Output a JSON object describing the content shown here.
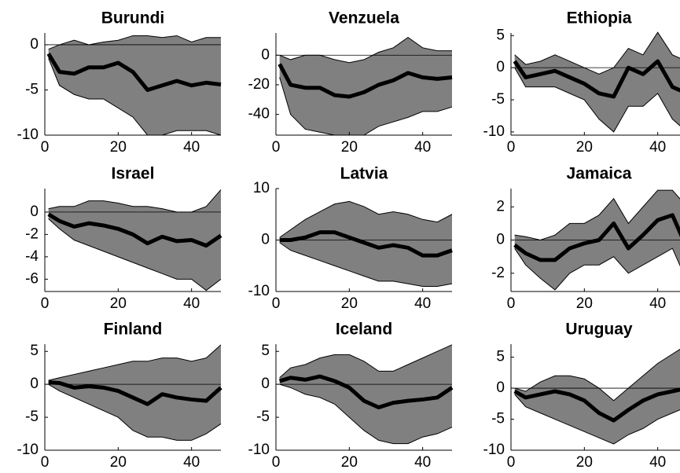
{
  "chart_data": [
    {
      "type": "band-line",
      "title": "Burundi",
      "x": [
        1,
        4,
        8,
        12,
        16,
        20,
        24,
        28,
        32,
        36,
        40,
        44,
        48
      ],
      "xlim": [
        0,
        48
      ],
      "xticks": [
        0,
        20,
        40
      ],
      "ylim": [
        -10,
        1.3
      ],
      "yticks": [
        -10,
        -5,
        0
      ],
      "band": {
        "color": "#808080",
        "lower": [
          -1.5,
          -4.5,
          -5.5,
          -6,
          -6,
          -7,
          -8,
          -10,
          -10,
          -9.5,
          -9.5,
          -9.5,
          -10
        ],
        "upper": [
          -0.5,
          0,
          0.5,
          0,
          0.3,
          0.5,
          1,
          1,
          0.8,
          1,
          0.3,
          0.8,
          0.8
        ]
      },
      "series": [
        {
          "color": "#000000",
          "values": [
            -1,
            -3,
            -3.2,
            -2.5,
            -2.5,
            -2,
            -3,
            -5,
            -4.5,
            -4,
            -4.5,
            -4.2,
            -4.4
          ]
        }
      ]
    },
    {
      "type": "band-line",
      "title": "Venzuela",
      "x": [
        1,
        4,
        8,
        12,
        16,
        20,
        24,
        28,
        32,
        36,
        40,
        44,
        48
      ],
      "xlim": [
        0,
        48
      ],
      "xticks": [
        0,
        20,
        40
      ],
      "ylim": [
        -54,
        15
      ],
      "yticks": [
        -40,
        -20,
        0
      ],
      "band": {
        "color": "#808080",
        "lower": [
          -15,
          -40,
          -50,
          -52,
          -54,
          -54,
          -54,
          -48,
          -45,
          -42,
          -38,
          -38,
          -35
        ],
        "upper": [
          0,
          -3,
          0,
          0,
          -3,
          -5,
          -3,
          2,
          5,
          12,
          5,
          3,
          3
        ]
      },
      "series": [
        {
          "color": "#000000",
          "values": [
            -6,
            -20,
            -22,
            -22,
            -27,
            -28,
            -25,
            -20,
            -17,
            -12,
            -15,
            -16,
            -15
          ]
        }
      ]
    },
    {
      "type": "band-line",
      "title": "Ethiopia",
      "x": [
        1,
        4,
        8,
        12,
        16,
        20,
        24,
        28,
        32,
        36,
        40,
        44,
        48
      ],
      "xlim": [
        0,
        48
      ],
      "xticks": [
        0,
        20,
        40
      ],
      "ylim": [
        -10.5,
        5.4
      ],
      "yticks": [
        -10,
        -5,
        0,
        5
      ],
      "band": {
        "color": "#808080",
        "lower": [
          0,
          -3,
          -3,
          -3,
          -4,
          -5,
          -8,
          -10,
          -6,
          -6,
          -4,
          -8,
          -10
        ],
        "upper": [
          2,
          0.5,
          1,
          2,
          1,
          0,
          -1,
          0,
          3,
          2,
          5.5,
          2,
          1
        ]
      },
      "series": [
        {
          "color": "#000000",
          "values": [
            1,
            -1.5,
            -1,
            -0.5,
            -1.5,
            -2.5,
            -4,
            -4.5,
            0,
            -1,
            1,
            -3,
            -4
          ]
        }
      ]
    },
    {
      "type": "band-line",
      "title": "Israel",
      "x": [
        1,
        4,
        8,
        12,
        16,
        20,
        24,
        28,
        32,
        36,
        40,
        44,
        48
      ],
      "xlim": [
        0,
        48
      ],
      "xticks": [
        0,
        20,
        40
      ],
      "ylim": [
        -7.1,
        2.1
      ],
      "yticks": [
        -6,
        -4,
        -2,
        0
      ],
      "band": {
        "color": "#808080",
        "lower": [
          -0.6,
          -1.5,
          -2.5,
          -3,
          -3.5,
          -4,
          -4.5,
          -5,
          -5.5,
          -6,
          -6,
          -7,
          -6
        ],
        "upper": [
          0.3,
          0.5,
          0.5,
          1,
          1,
          0.8,
          0.5,
          0.5,
          0.3,
          0,
          0,
          0.5,
          2
        ]
      },
      "series": [
        {
          "color": "#000000",
          "values": [
            -0.2,
            -0.8,
            -1.3,
            -1,
            -1.2,
            -1.5,
            -2,
            -2.8,
            -2.2,
            -2.6,
            -2.5,
            -3,
            -2.1
          ]
        }
      ]
    },
    {
      "type": "band-line",
      "title": "Latvia",
      "x": [
        1,
        4,
        8,
        12,
        16,
        20,
        24,
        28,
        32,
        36,
        40,
        44,
        48
      ],
      "xlim": [
        0,
        48
      ],
      "xticks": [
        0,
        20,
        40
      ],
      "ylim": [
        -10,
        10
      ],
      "yticks": [
        -10,
        0,
        10
      ],
      "band": {
        "color": "#808080",
        "lower": [
          -0.5,
          -2,
          -3,
          -4,
          -5,
          -6,
          -7,
          -8,
          -8,
          -8.5,
          -9,
          -9,
          -8.5
        ],
        "upper": [
          0.5,
          2,
          4,
          5.5,
          7,
          7.5,
          6.5,
          5,
          5.5,
          5,
          4,
          3.5,
          5
        ]
      },
      "series": [
        {
          "color": "#000000",
          "values": [
            0,
            0,
            0.5,
            1.5,
            1.5,
            0.5,
            -0.5,
            -1.5,
            -1,
            -1.5,
            -3,
            -3,
            -2
          ]
        }
      ]
    },
    {
      "type": "band-line",
      "title": "Jamaica",
      "x": [
        1,
        4,
        8,
        12,
        16,
        20,
        24,
        28,
        32,
        36,
        40,
        44,
        48
      ],
      "xlim": [
        0,
        48
      ],
      "xticks": [
        0,
        20,
        40
      ],
      "ylim": [
        -3.1,
        3.1
      ],
      "yticks": [
        -2,
        0,
        2
      ],
      "band": {
        "color": "#808080",
        "lower": [
          -0.5,
          -1.5,
          -2.3,
          -3,
          -2,
          -1.5,
          -1.5,
          -1,
          -2,
          -1.5,
          -1,
          -0.5,
          -2.5
        ],
        "upper": [
          0.3,
          0.2,
          0,
          0.3,
          1,
          1,
          1.5,
          2.5,
          1,
          2,
          3,
          3,
          2
        ]
      },
      "series": [
        {
          "color": "#000000",
          "values": [
            -0.3,
            -0.8,
            -1.2,
            -1.2,
            -0.5,
            -0.2,
            0,
            1,
            -0.5,
            0.3,
            1.2,
            1.5,
            -0.5
          ]
        }
      ]
    },
    {
      "type": "band-line",
      "title": "Finland",
      "x": [
        1,
        4,
        8,
        12,
        16,
        20,
        24,
        28,
        32,
        36,
        40,
        44,
        48
      ],
      "xlim": [
        0,
        48
      ],
      "xticks": [
        0,
        20,
        40
      ],
      "ylim": [
        -10,
        6.1
      ],
      "yticks": [
        -10,
        -5,
        0,
        5
      ],
      "band": {
        "color": "#808080",
        "lower": [
          0,
          -1,
          -2,
          -3,
          -4,
          -5,
          -7,
          -8,
          -8,
          -8.5,
          -8.5,
          -7.5,
          -6
        ],
        "upper": [
          0.6,
          1,
          1.5,
          2,
          2.5,
          3,
          3.5,
          3.5,
          4,
          4,
          3.5,
          4,
          6
        ]
      },
      "series": [
        {
          "color": "#000000",
          "values": [
            0.3,
            0.2,
            -0.5,
            -0.3,
            -0.5,
            -1,
            -2,
            -3,
            -1.5,
            -2,
            -2.3,
            -2.5,
            -0.5
          ]
        }
      ]
    },
    {
      "type": "band-line",
      "title": "Iceland",
      "x": [
        1,
        4,
        8,
        12,
        16,
        20,
        24,
        28,
        32,
        36,
        40,
        44,
        48
      ],
      "xlim": [
        0,
        48
      ],
      "xticks": [
        0,
        20,
        40
      ],
      "ylim": [
        -10,
        6.1
      ],
      "yticks": [
        -10,
        -5,
        0,
        5
      ],
      "band": {
        "color": "#808080",
        "lower": [
          0,
          -0.5,
          -1.5,
          -2,
          -3,
          -5,
          -7,
          -8.5,
          -9,
          -9,
          -8,
          -7.5,
          -6.5
        ],
        "upper": [
          1,
          2.5,
          3,
          4,
          4.5,
          4.5,
          3.5,
          2,
          2,
          3,
          4,
          5,
          6
        ]
      },
      "series": [
        {
          "color": "#000000",
          "values": [
            0.5,
            1,
            0.7,
            1.2,
            0.5,
            -0.5,
            -2.5,
            -3.5,
            -2.8,
            -2.5,
            -2.3,
            -2,
            -0.5
          ]
        }
      ]
    },
    {
      "type": "band-line",
      "title": "Uruguay",
      "x": [
        1,
        4,
        8,
        12,
        16,
        20,
        24,
        28,
        32,
        36,
        40,
        44,
        48
      ],
      "xlim": [
        0,
        48
      ],
      "xticks": [
        0,
        20,
        40
      ],
      "ylim": [
        -10,
        7.1
      ],
      "yticks": [
        -10,
        -5,
        0,
        5
      ],
      "band": {
        "color": "#808080",
        "lower": [
          -1,
          -3,
          -4,
          -5,
          -6,
          -7,
          -8,
          -9,
          -7.5,
          -6.5,
          -5,
          -4,
          -3
        ],
        "upper": [
          0,
          -0.5,
          1,
          2,
          2,
          1.5,
          0,
          -2,
          0,
          2,
          4,
          5.5,
          7
        ]
      },
      "series": [
        {
          "color": "#000000",
          "values": [
            -0.5,
            -1.5,
            -1,
            -0.5,
            -1,
            -2,
            -4,
            -5.2,
            -3.5,
            -2,
            -1,
            -0.5,
            0
          ]
        }
      ]
    }
  ]
}
